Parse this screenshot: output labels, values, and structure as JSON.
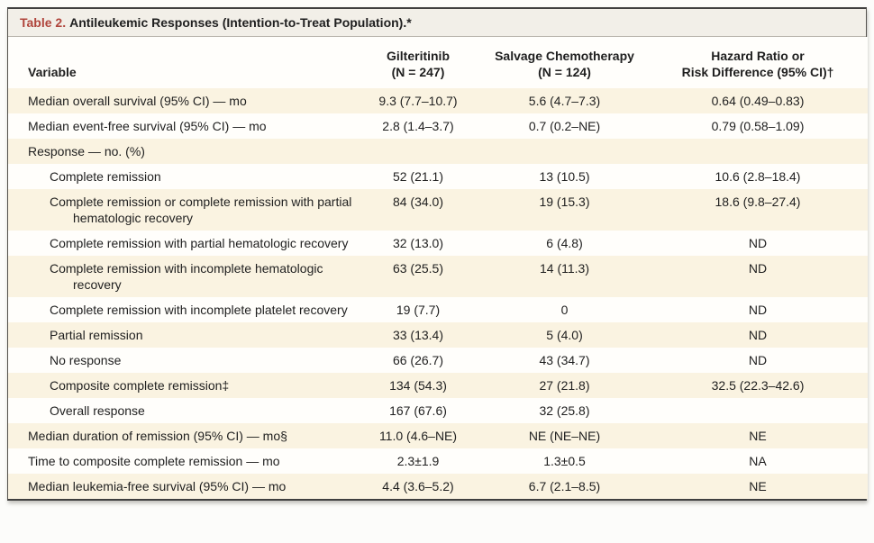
{
  "title": {
    "label": "Table 2.",
    "text": "Antileukemic Responses (Intention-to-Treat Population).*"
  },
  "columns": [
    {
      "header": "Variable"
    },
    {
      "line1": "Gilteritinib",
      "line2": "(N = 247)"
    },
    {
      "line1": "Salvage Chemotherapy",
      "line2": "(N = 124)"
    },
    {
      "line1": "Hazard Ratio or",
      "line2": "Risk Difference (95% CI)†"
    }
  ],
  "rows": [
    {
      "variable": "Median overall survival (95% CI) — mo",
      "indent": 0,
      "gilteritinib": "9.3 (7.7–10.7)",
      "salvage": "5.6 (4.7–7.3)",
      "hazard": "0.64 (0.49–0.83)"
    },
    {
      "variable": "Median event-free survival (95% CI) — mo",
      "indent": 0,
      "gilteritinib": "2.8 (1.4–3.7)",
      "salvage": "0.7 (0.2–NE)",
      "hazard": "0.79 (0.58–1.09)"
    },
    {
      "variable": "Response — no. (%)",
      "indent": 0,
      "gilteritinib": "",
      "salvage": "",
      "hazard": ""
    },
    {
      "variable": "Complete remission",
      "indent": 1,
      "gilteritinib": "52 (21.1)",
      "salvage": "13 (10.5)",
      "hazard": "10.6 (2.8–18.4)"
    },
    {
      "variable": "Complete remission or complete remission with partial hematologic recovery",
      "indent": 1,
      "gilteritinib": "84 (34.0)",
      "salvage": "19 (15.3)",
      "hazard": "18.6 (9.8–27.4)"
    },
    {
      "variable": "Complete remission with partial hematologic recovery",
      "indent": 1,
      "gilteritinib": "32 (13.0)",
      "salvage": "6 (4.8)",
      "hazard": "ND"
    },
    {
      "variable": "Complete remission with incomplete hematologic recovery",
      "indent": 1,
      "gilteritinib": "63 (25.5)",
      "salvage": "14 (11.3)",
      "hazard": "ND"
    },
    {
      "variable": "Complete remission with incomplete platelet recovery",
      "indent": 1,
      "gilteritinib": "19 (7.7)",
      "salvage": "0",
      "hazard": "ND"
    },
    {
      "variable": "Partial remission",
      "indent": 1,
      "gilteritinib": "33 (13.4)",
      "salvage": "5 (4.0)",
      "hazard": "ND"
    },
    {
      "variable": "No response",
      "indent": 1,
      "gilteritinib": "66 (26.7)",
      "salvage": "43 (34.7)",
      "hazard": "ND"
    },
    {
      "variable": "Composite complete remission‡",
      "indent": 1,
      "gilteritinib": "134 (54.3)",
      "salvage": "27 (21.8)",
      "hazard": "32.5 (22.3–42.6)"
    },
    {
      "variable": "Overall response",
      "indent": 1,
      "gilteritinib": "167 (67.6)",
      "salvage": "32 (25.8)",
      "hazard": ""
    },
    {
      "variable": "Median duration of remission (95% CI) — mo§",
      "indent": 0,
      "gilteritinib": "11.0 (4.6–NE)",
      "salvage": "NE (NE–NE)",
      "hazard": "NE"
    },
    {
      "variable": "Time to composite complete remission — mo",
      "indent": 0,
      "gilteritinib": "2.3±1.9",
      "salvage": "1.3±0.5",
      "hazard": "NA"
    },
    {
      "variable": "Median leukemia-free survival (95% CI) — mo",
      "indent": 0,
      "gilteritinib": "4.4 (3.6–5.2)",
      "salvage": "6.7 (2.1–8.5)",
      "hazard": "NE"
    }
  ],
  "colors": {
    "accent_red": "#b0453c",
    "shaded_row": "#faf3e1",
    "title_bar_bg": "#f2efe8",
    "border_dark": "#3f3f3f"
  }
}
